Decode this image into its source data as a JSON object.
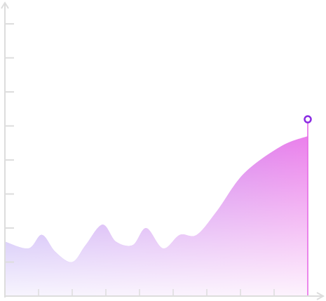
{
  "chart_data": {
    "type": "area",
    "x": [
      0,
      0.7,
      1.1,
      1.5,
      2,
      2.4,
      2.9,
      3.3,
      3.8,
      4.2,
      4.7,
      5.2,
      5.7,
      6.3,
      7.1,
      8.2,
      9
    ],
    "values": [
      1.6,
      1.4,
      1.8,
      1.3,
      1.0,
      1.5,
      2.1,
      1.6,
      1.5,
      2.0,
      1.4,
      1.8,
      1.8,
      2.5,
      3.6,
      4.4,
      4.7
    ],
    "colors": [
      "#9d7ef0",
      "#e86ce8"
    ],
    "marker_color": "#8a2be2",
    "xlim": [
      0,
      9
    ],
    "xticks": [
      1,
      2,
      3,
      4,
      5,
      6,
      7,
      8
    ],
    "ylim": [
      0,
      8
    ],
    "yticks": [
      1,
      2,
      3,
      4,
      5,
      6,
      7,
      8
    ]
  }
}
